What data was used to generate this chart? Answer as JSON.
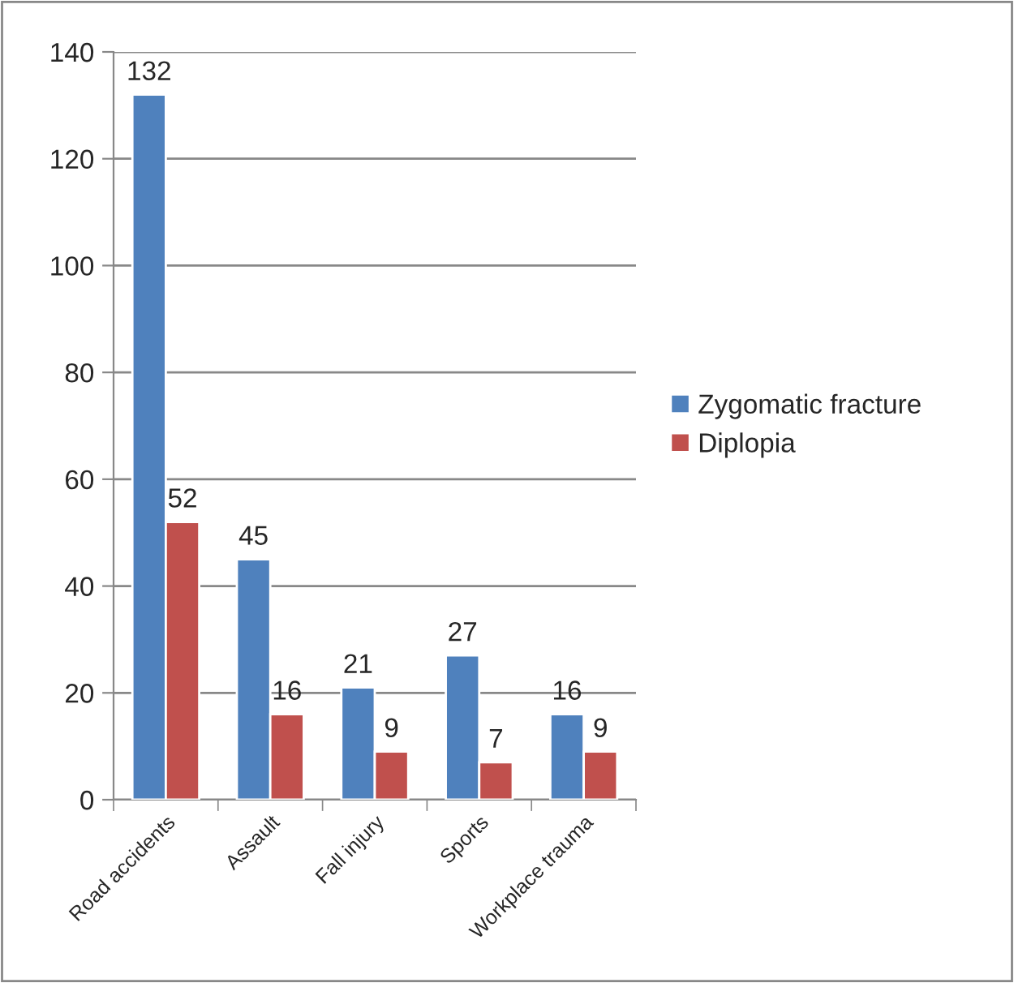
{
  "chart_data": {
    "type": "bar",
    "categories": [
      "Road accidents",
      "Assault",
      "Fall injury",
      "Sports",
      "Workplace trauma"
    ],
    "series": [
      {
        "name": "Zygomatic fracture",
        "color": "#4f81bd",
        "values": [
          132,
          45,
          21,
          27,
          16
        ]
      },
      {
        "name": "Diplopia",
        "color": "#c0504d",
        "values": [
          52,
          16,
          9,
          7,
          9
        ]
      }
    ],
    "ylim": [
      0,
      140
    ],
    "yticks": [
      0,
      20,
      40,
      60,
      80,
      100,
      120,
      140
    ],
    "grid": "y",
    "legend": "right",
    "data_labels": true
  }
}
